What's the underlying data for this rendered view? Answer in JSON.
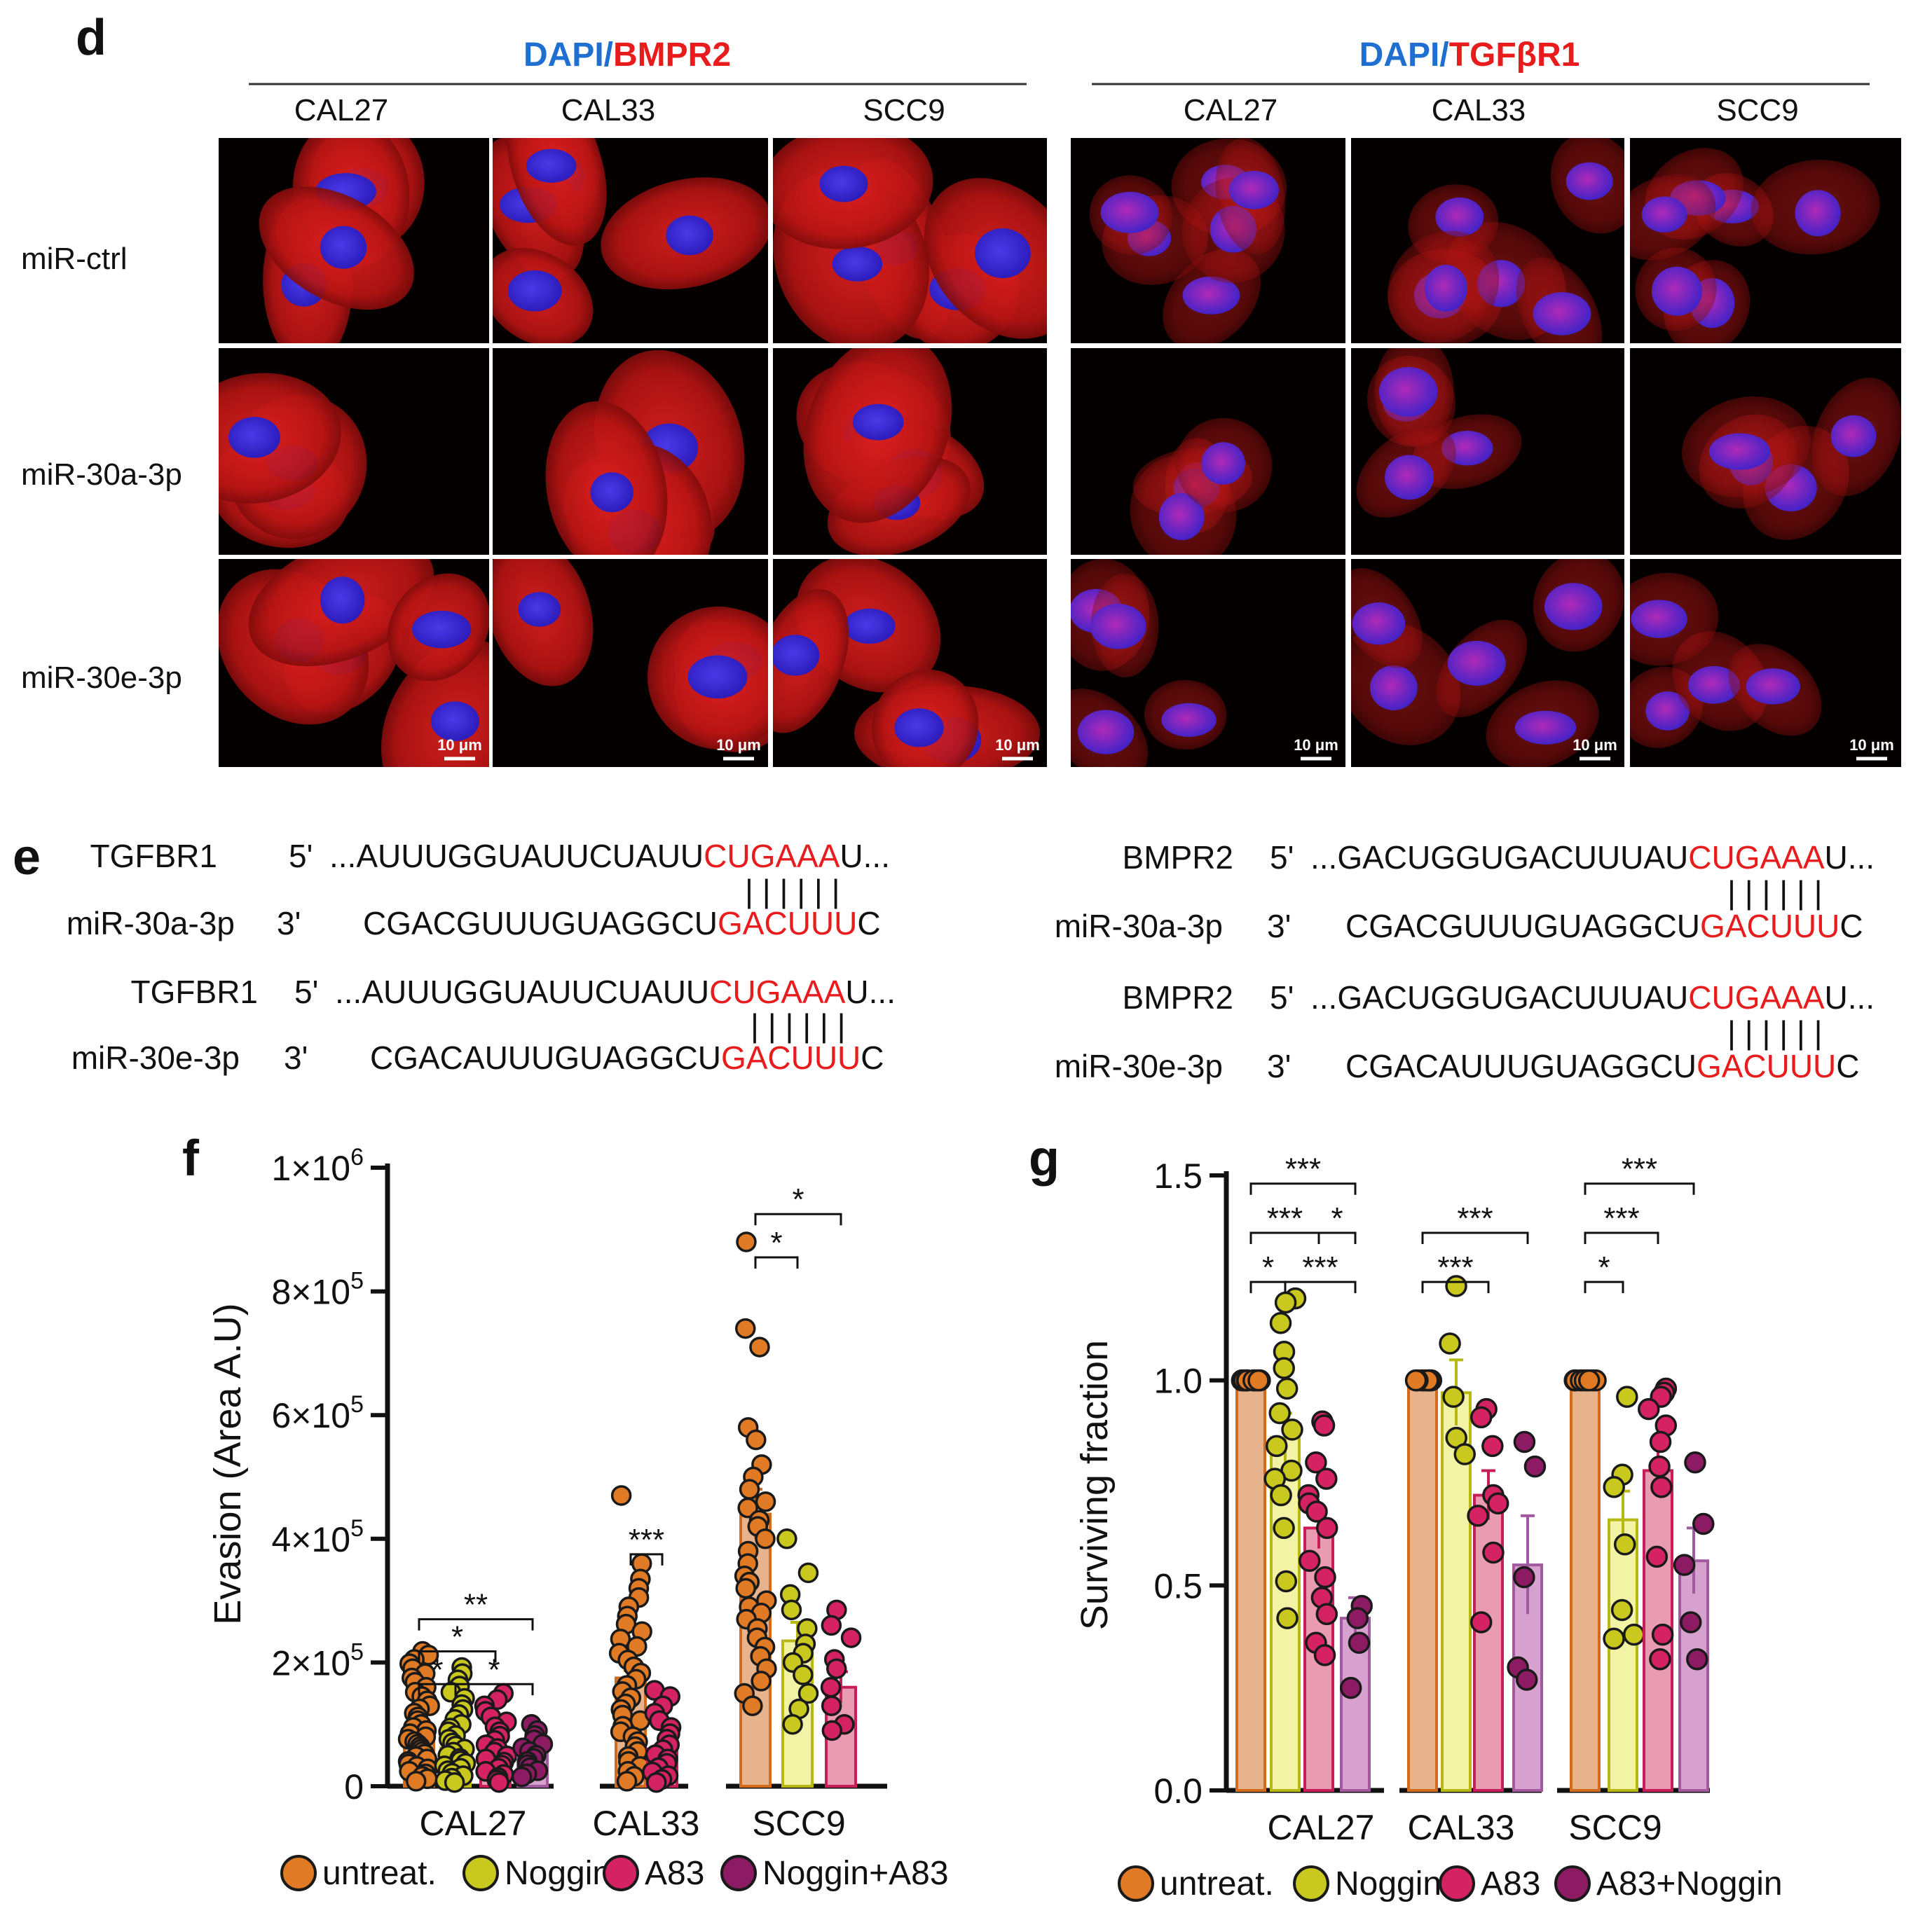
{
  "panel_d": {
    "letter": "d",
    "groups": [
      {
        "stain_prefix": "DAPI",
        "stain_sep": "/",
        "stain_target": "BMPR2",
        "cols": [
          "CAL27",
          "CAL33",
          "SCC9"
        ]
      },
      {
        "stain_prefix": "DAPI",
        "stain_sep": "/",
        "stain_target": "TGFβR1",
        "cols": [
          "CAL27",
          "CAL33",
          "SCC9"
        ]
      }
    ],
    "rows": [
      "miR-ctrl",
      "miR-30a-3p",
      "miR-30e-3p"
    ],
    "scale_bar": "10 μm",
    "colors": {
      "dapi": "#1e6fd0",
      "target": "#e81c1c",
      "cell": "#d01818",
      "nucleus": "#3c2bd6"
    }
  },
  "panel_e": {
    "letter": "e",
    "blocks": [
      {
        "gene": "TGFBR1",
        "gene_end": "5'",
        "gene_seq_pre": "...AUUUGGUAUUCUAUU",
        "gene_seq_hl": "CUGAAA",
        "gene_seq_post": "U...",
        "bars": "| | | | | |",
        "mir": "miR-30a-3p",
        "mir_end": "3'",
        "mir_seq_pre": "CGACGUUUGUAGGCU",
        "mir_seq_hl": "GACUUU",
        "mir_seq_post": "C"
      },
      {
        "gene": "TGFBR1",
        "gene_end": "5'",
        "gene_seq_pre": "...AUUUGGUAUUCUAUU",
        "gene_seq_hl": "CUGAAA",
        "gene_seq_post": "U...",
        "bars": "| | | | | |",
        "mir": "miR-30e-3p",
        "mir_end": "3'",
        "mir_seq_pre": "CGACAUUUGUAGGCU",
        "mir_seq_hl": "GACUUU",
        "mir_seq_post": "C"
      },
      {
        "gene": "BMPR2",
        "gene_end": "5'",
        "gene_seq_pre": "...GACUGGUGACUUUAU",
        "gene_seq_hl": "CUGAAA",
        "gene_seq_post": "U...",
        "bars": "| | | | | |",
        "mir": "miR-30a-3p",
        "mir_end": "3'",
        "mir_seq_pre": "CGACGUUUGUAGGCU",
        "mir_seq_hl": "GACUUU",
        "mir_seq_post": "C"
      },
      {
        "gene": "BMPR2",
        "gene_end": "5'",
        "gene_seq_pre": "...GACUGGUGACUUUAU",
        "gene_seq_hl": "CUGAAA",
        "gene_seq_post": "U...",
        "bars": "| | | | | |",
        "mir": "miR-30e-3p",
        "mir_end": "3'",
        "mir_seq_pre": "CGACAUUUGUAGGCU",
        "mir_seq_hl": "GACUUU",
        "mir_seq_post": "C"
      }
    ],
    "highlight_color": "#e81c1c"
  },
  "chart_data": [
    {
      "panel": "f",
      "type": "bar",
      "ylabel": "Evasion (Area A.U)",
      "ylim": [
        0,
        1000000
      ],
      "yticks": [
        {
          "value": 0,
          "label": "0"
        },
        {
          "value": 200000,
          "label": "2×10",
          "exp": "5"
        },
        {
          "value": 400000,
          "label": "4×10",
          "exp": "5"
        },
        {
          "value": 600000,
          "label": "6×10",
          "exp": "5"
        },
        {
          "value": 800000,
          "label": "8×10",
          "exp": "5"
        },
        {
          "value": 1000000,
          "label": "1×10",
          "exp": "6"
        }
      ],
      "groups": [
        {
          "label": "CAL27",
          "bars": [
            {
              "series": 0,
              "mean": 90000,
              "err": 6000,
              "points": [
                218000,
                212000,
                205000,
                198000,
                190000,
                182000,
                175000,
                168000,
                160000,
                152000,
                145000,
                138000,
                130000,
                125000,
                118000,
                112000,
                106000,
                100000,
                95000,
                90000,
                85000,
                80000,
                76000,
                72000,
                68000,
                64000,
                60000,
                56000,
                52000,
                48000,
                44000,
                40000,
                36000,
                32000,
                28000,
                24000,
                20000,
                16000,
                12000,
                8000
              ]
            },
            {
              "series": 1,
              "mean": 62000,
              "err": 5000,
              "points": [
                192000,
                182000,
                172000,
                162000,
                152000,
                142000,
                132000,
                124000,
                116000,
                108000,
                100000,
                94000,
                88000,
                82000,
                76000,
                70000,
                65000,
                60000,
                55000,
                50000,
                45000,
                41000,
                37000,
                33000,
                29000,
                25000,
                21000,
                17000,
                13000,
                9000,
                6000
              ]
            },
            {
              "series": 2,
              "mean": 55000,
              "err": 5000,
              "points": [
                150000,
                140000,
                130000,
                121000,
                112000,
                104000,
                96000,
                88000,
                81000,
                74000,
                67000,
                61000,
                55000,
                49000,
                44000,
                39000,
                34000,
                29000,
                24000,
                19000,
                14000,
                10000,
                6000
              ]
            },
            {
              "series": 3,
              "mean": 52000,
              "err": 5000,
              "points": [
                100000,
                90000,
                82000,
                75000,
                68000,
                62000,
                56000,
                50000,
                45000,
                40000,
                35000,
                30000,
                25000,
                20000,
                15000
              ]
            }
          ]
        },
        {
          "label": "CAL33",
          "bars": [
            {
              "series": 0,
              "mean": 175000,
              "err": 12000,
              "points": [
                470000,
                360000,
                335000,
                320000,
                305000,
                290000,
                275000,
                262000,
                250000,
                238000,
                226000,
                215000,
                204000,
                193000,
                183000,
                173000,
                163000,
                153000,
                143000,
                133000,
                124000,
                115000,
                106000,
                97000,
                88000,
                80000,
                72000,
                64000,
                56000,
                48000,
                40000,
                32000,
                24000,
                16000,
                8000
              ]
            },
            {
              "series": 2,
              "mean": 60000,
              "err": 8000,
              "points": [
                155000,
                145000,
                130000,
                118000,
                106000,
                95000,
                85000,
                76000,
                67000,
                59000,
                51000,
                44000,
                37000,
                30000,
                23000,
                17000,
                11000,
                6000
              ]
            }
          ]
        },
        {
          "label": "SCC9",
          "bars": [
            {
              "series": 0,
              "mean": 440000,
              "err": 40000,
              "points": [
                880000,
                740000,
                710000,
                580000,
                560000,
                520000,
                500000,
                480000,
                460000,
                450000,
                430000,
                420000,
                400000,
                380000,
                360000,
                340000,
                330000,
                320000,
                300000,
                290000,
                280000,
                270000,
                255000,
                240000,
                225000,
                210000,
                190000,
                170000,
                150000,
                130000
              ]
            },
            {
              "series": 1,
              "mean": 235000,
              "err": 30000,
              "points": [
                400000,
                345000,
                310000,
                285000,
                255000,
                230000,
                215000,
                200000,
                180000,
                150000,
                125000,
                100000
              ]
            },
            {
              "series": 2,
              "mean": 160000,
              "err": 25000,
              "points": [
                285000,
                260000,
                240000,
                205000,
                190000,
                160000,
                130000,
                100000,
                90000
              ]
            }
          ]
        }
      ],
      "significance": [
        {
          "label": "*",
          "g": 2,
          "from": 0,
          "to": 2,
          "level": 925000
        },
        {
          "label": "*",
          "g": 2,
          "from": 0,
          "to": 1,
          "level": 855000
        },
        {
          "label": "***",
          "g": 1,
          "from": 0,
          "to": 1,
          "level": 375000
        },
        {
          "label": "**",
          "g": 0,
          "from": 0,
          "to": 3,
          "level": 270000
        },
        {
          "label": "*",
          "g": 0,
          "from": 0,
          "to": 2,
          "level": 218000
        },
        {
          "label": "*",
          "g": 0,
          "from": 0,
          "to": 1,
          "level": 165000
        },
        {
          "label": "*",
          "g": 0,
          "from": 1,
          "to": 3,
          "level": 165000
        }
      ],
      "legend": [
        "untreat.",
        "Noggin",
        "A83",
        "Noggin+A83"
      ]
    },
    {
      "panel": "g",
      "type": "bar",
      "ylabel": "Surviving fraction",
      "ylim": [
        0,
        1.5
      ],
      "yticks": [
        {
          "value": 0,
          "label": "0.0"
        },
        {
          "value": 0.5,
          "label": "0.5"
        },
        {
          "value": 1.0,
          "label": "1.0"
        },
        {
          "value": 1.5,
          "label": "1.5"
        }
      ],
      "groups": [
        {
          "label": "CAL27",
          "bars": [
            {
              "series": 0,
              "mean": 1.0,
              "err": 0,
              "points": [
                1.0,
                1.0,
                1.0,
                1.0,
                1.0,
                1.0,
                1.0,
                1.0,
                1.0,
                1.0,
                1.0,
                1.0
              ]
            },
            {
              "series": 1,
              "mean": 0.86,
              "err": 0.06,
              "points": [
                1.2,
                1.19,
                1.14,
                1.07,
                1.03,
                0.98,
                0.92,
                0.88,
                0.84,
                0.78,
                0.76,
                0.72,
                0.64,
                0.51,
                0.42
              ]
            },
            {
              "series": 2,
              "mean": 0.64,
              "err": 0.05,
              "points": [
                0.9,
                0.89,
                0.8,
                0.76,
                0.72,
                0.7,
                0.68,
                0.64,
                0.56,
                0.52,
                0.47,
                0.43,
                0.36,
                0.33
              ]
            },
            {
              "series": 3,
              "mean": 0.42,
              "err": 0.05,
              "points": [
                0.45,
                0.42,
                0.36,
                0.25
              ]
            }
          ]
        },
        {
          "label": "CAL33",
          "bars": [
            {
              "series": 0,
              "mean": 1.0,
              "err": 0,
              "points": [
                1.0,
                1.0,
                1.0,
                1.0,
                1.0,
                1.0,
                1.0,
                1.0
              ]
            },
            {
              "series": 1,
              "mean": 0.97,
              "err": 0.08,
              "points": [
                1.23,
                1.09,
                0.96,
                0.86,
                0.82
              ]
            },
            {
              "series": 2,
              "mean": 0.72,
              "err": 0.06,
              "points": [
                0.93,
                0.91,
                0.84,
                0.72,
                0.7,
                0.67,
                0.58,
                0.41
              ]
            },
            {
              "series": 3,
              "mean": 0.55,
              "err": 0.12,
              "points": [
                0.85,
                0.79,
                0.52,
                0.3,
                0.27
              ]
            }
          ]
        },
        {
          "label": "SCC9",
          "bars": [
            {
              "series": 0,
              "mean": 1.0,
              "err": 0,
              "points": [
                1.0,
                1.0,
                1.0,
                1.0,
                1.0,
                1.0,
                1.0,
                1.0
              ]
            },
            {
              "series": 1,
              "mean": 0.66,
              "err": 0.07,
              "points": [
                0.96,
                0.77,
                0.74,
                0.6,
                0.44,
                0.38,
                0.37
              ]
            },
            {
              "series": 2,
              "mean": 0.78,
              "err": 0.06,
              "points": [
                0.98,
                0.97,
                0.96,
                0.93,
                0.89,
                0.85,
                0.79,
                0.74,
                0.57,
                0.38,
                0.32
              ]
            },
            {
              "series": 3,
              "mean": 0.56,
              "err": 0.08,
              "points": [
                0.8,
                0.65,
                0.55,
                0.41,
                0.32
              ]
            }
          ]
        }
      ],
      "significance": [
        {
          "label": "***",
          "g": 0,
          "from": 0,
          "to": 3,
          "level": 1.48
        },
        {
          "label": "***",
          "g": 0,
          "from": 0,
          "to": 2,
          "level": 1.36
        },
        {
          "label": "*",
          "g": 0,
          "from": 2,
          "to": 3,
          "level": 1.36
        },
        {
          "label": "*",
          "g": 0,
          "from": 0,
          "to": 1,
          "level": 1.24
        },
        {
          "label": "***",
          "g": 0,
          "from": 1,
          "to": 3,
          "level": 1.24
        },
        {
          "label": "***",
          "g": 1,
          "from": 0,
          "to": 3,
          "level": 1.36
        },
        {
          "label": "***",
          "g": 1,
          "from": 0,
          "to": 2,
          "level": 1.24
        },
        {
          "label": "***",
          "g": 2,
          "from": 0,
          "to": 3,
          "level": 1.48
        },
        {
          "label": "***",
          "g": 2,
          "from": 0,
          "to": 2,
          "level": 1.36
        },
        {
          "label": "*",
          "g": 2,
          "from": 0,
          "to": 1,
          "level": 1.24
        }
      ],
      "legend": [
        "untreat.",
        "Noggin",
        "A83",
        "A83+Noggin"
      ]
    }
  ],
  "series_colors": [
    {
      "fill": "#e7b38d",
      "dot": "#e07a24",
      "edge": "#d36a1c"
    },
    {
      "fill": "#f3f3a6",
      "dot": "#c8c81e",
      "edge": "#b8b814"
    },
    {
      "fill": "#e99bb2",
      "dot": "#d42262",
      "edge": "#c81d58"
    },
    {
      "fill": "#d7a1cf",
      "dot": "#8c1b63",
      "edge": "#a15aa0"
    }
  ]
}
